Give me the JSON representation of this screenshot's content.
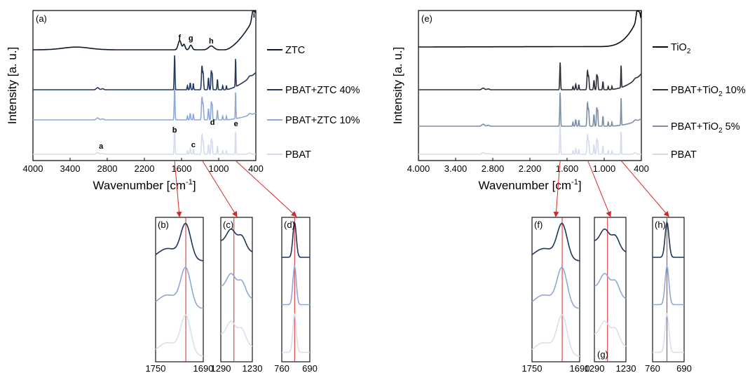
{
  "chart_data": [
    {
      "type": "line",
      "panel": "(a)",
      "xlabel_main": "Wavenumber [cm",
      "xlabel_sup": "-1",
      "xlabel_end": "]",
      "ylabel": "Intensity [a. u.]",
      "xlim": [
        4000,
        400
      ],
      "x_ticks": [
        "4000",
        "3400",
        "2800",
        "2200",
        "1600",
        "1000",
        "400"
      ],
      "series": [
        {
          "name": "ZTC",
          "color": "#0d1b2e"
        },
        {
          "name": "PBAT+ZTC 40%",
          "color": "#24395e"
        },
        {
          "name": "PBAT+ZTC 10%",
          "color": "#8fa9d4"
        },
        {
          "name": "PBAT",
          "color": "#d3dcec"
        }
      ],
      "peak_labels": [
        {
          "text": "a",
          "x": 2900
        },
        {
          "text": "b",
          "x": 1712
        },
        {
          "text": "c",
          "x": 1410
        },
        {
          "text": "d",
          "x": 1100
        },
        {
          "text": "e",
          "x": 720
        },
        {
          "text": "f",
          "x": 1630
        },
        {
          "text": "g",
          "x": 1450
        },
        {
          "text": "h",
          "x": 1120
        },
        {
          "text": "i",
          "x": 430
        }
      ]
    },
    {
      "type": "line",
      "panel": "(e)",
      "xlabel_main": "Wavenumber [cm",
      "xlabel_sup": "-1",
      "xlabel_end": "]",
      "ylabel": "Intensity [a. u.]",
      "xlim": [
        4000,
        400
      ],
      "x_ticks": [
        "4.000",
        "3.400",
        "2.800",
        "2.200",
        "1.600",
        "1.000",
        "400"
      ],
      "series": [
        {
          "name": "TiO",
          "sub": "2",
          "rest": "",
          "color": "#0d0d0d"
        },
        {
          "name": "PBAT+TiO",
          "sub": "2",
          "rest": "  10%",
          "color": "#2c2f38"
        },
        {
          "name": "PBAT+TiO",
          "sub": "2",
          "rest": "  5%",
          "color": "#7d8ea8"
        },
        {
          "name": "PBAT",
          "sub": "",
          "rest": "",
          "color": "#d3dcec"
        }
      ]
    },
    {
      "type": "line",
      "panel": "(b)",
      "xlim": [
        1750,
        1690
      ],
      "x_ticks": [
        "1750",
        "1690"
      ],
      "ref_line": 1712
    },
    {
      "type": "line",
      "panel": "(c)",
      "xlim": [
        1290,
        1230
      ],
      "x_ticks": [
        "1290",
        "1230"
      ],
      "ref_line": 1265
    },
    {
      "type": "line",
      "panel": "(d)",
      "xlim": [
        760,
        690
      ],
      "x_ticks": [
        "760",
        "690"
      ],
      "ref_line": 728
    },
    {
      "type": "line",
      "panel": "(f)",
      "xlim": [
        1750,
        1690
      ],
      "x_ticks": [
        "1750",
        "1690"
      ],
      "ref_line": 1712
    },
    {
      "type": "line",
      "panel": "(g)",
      "xlim": [
        1290,
        1230
      ],
      "x_ticks": [
        "1290",
        "1230"
      ],
      "ref_line": 1265
    },
    {
      "type": "line",
      "panel": "(h)",
      "xlim": [
        760,
        690
      ],
      "x_ticks": [
        "760",
        "690"
      ],
      "ref_line": 728
    }
  ]
}
